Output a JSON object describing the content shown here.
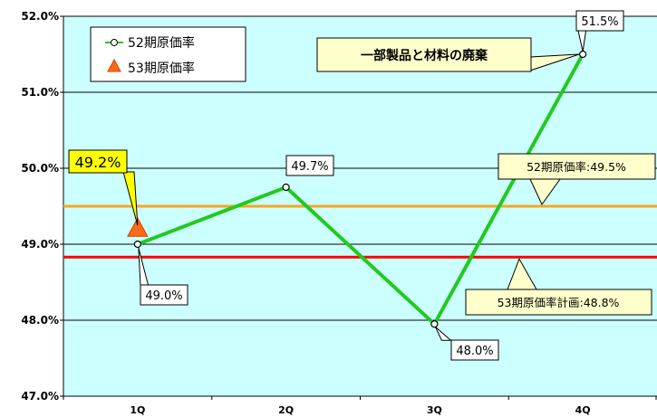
{
  "chart_data": {
    "type": "line",
    "categories": [
      "1Q",
      "2Q",
      "3Q",
      "4Q"
    ],
    "ylim": [
      47.0,
      52.0
    ],
    "y_ticks": [
      "47.0%",
      "48.0%",
      "49.0%",
      "50.0%",
      "51.0%",
      "52.0%"
    ],
    "grid": true,
    "legend_position": "top-left",
    "series": [
      {
        "name": "52期原価率",
        "values": [
          49.0,
          49.75,
          47.95,
          51.5
        ],
        "labels": [
          "49.0%",
          "49.7%",
          "48.0%",
          "51.5%"
        ],
        "color": "#22c91f",
        "marker": "open-circle"
      },
      {
        "name": "53期原価率",
        "values": [
          49.2,
          null,
          null,
          null
        ],
        "labels": [
          "49.2%",
          null,
          null,
          null
        ],
        "color": "#ff6a1a",
        "marker": "triangle"
      }
    ],
    "reference_lines": [
      {
        "label": "52期原価率:49.5%",
        "value": 49.5,
        "color": "#f5a623"
      },
      {
        "label": "53期原価率計画:48.8%",
        "value": 48.83,
        "color": "#ff0000"
      }
    ],
    "annotations": [
      {
        "text": "一部製品と材料の廃棄",
        "target_category": "4Q"
      }
    ],
    "colors": {
      "plot_background": "#ccffff",
      "grid": "#000000",
      "callout_fill": "#ffffff",
      "highlight_fill": "#ffff00",
      "note_fill": "#ffffcc"
    }
  }
}
